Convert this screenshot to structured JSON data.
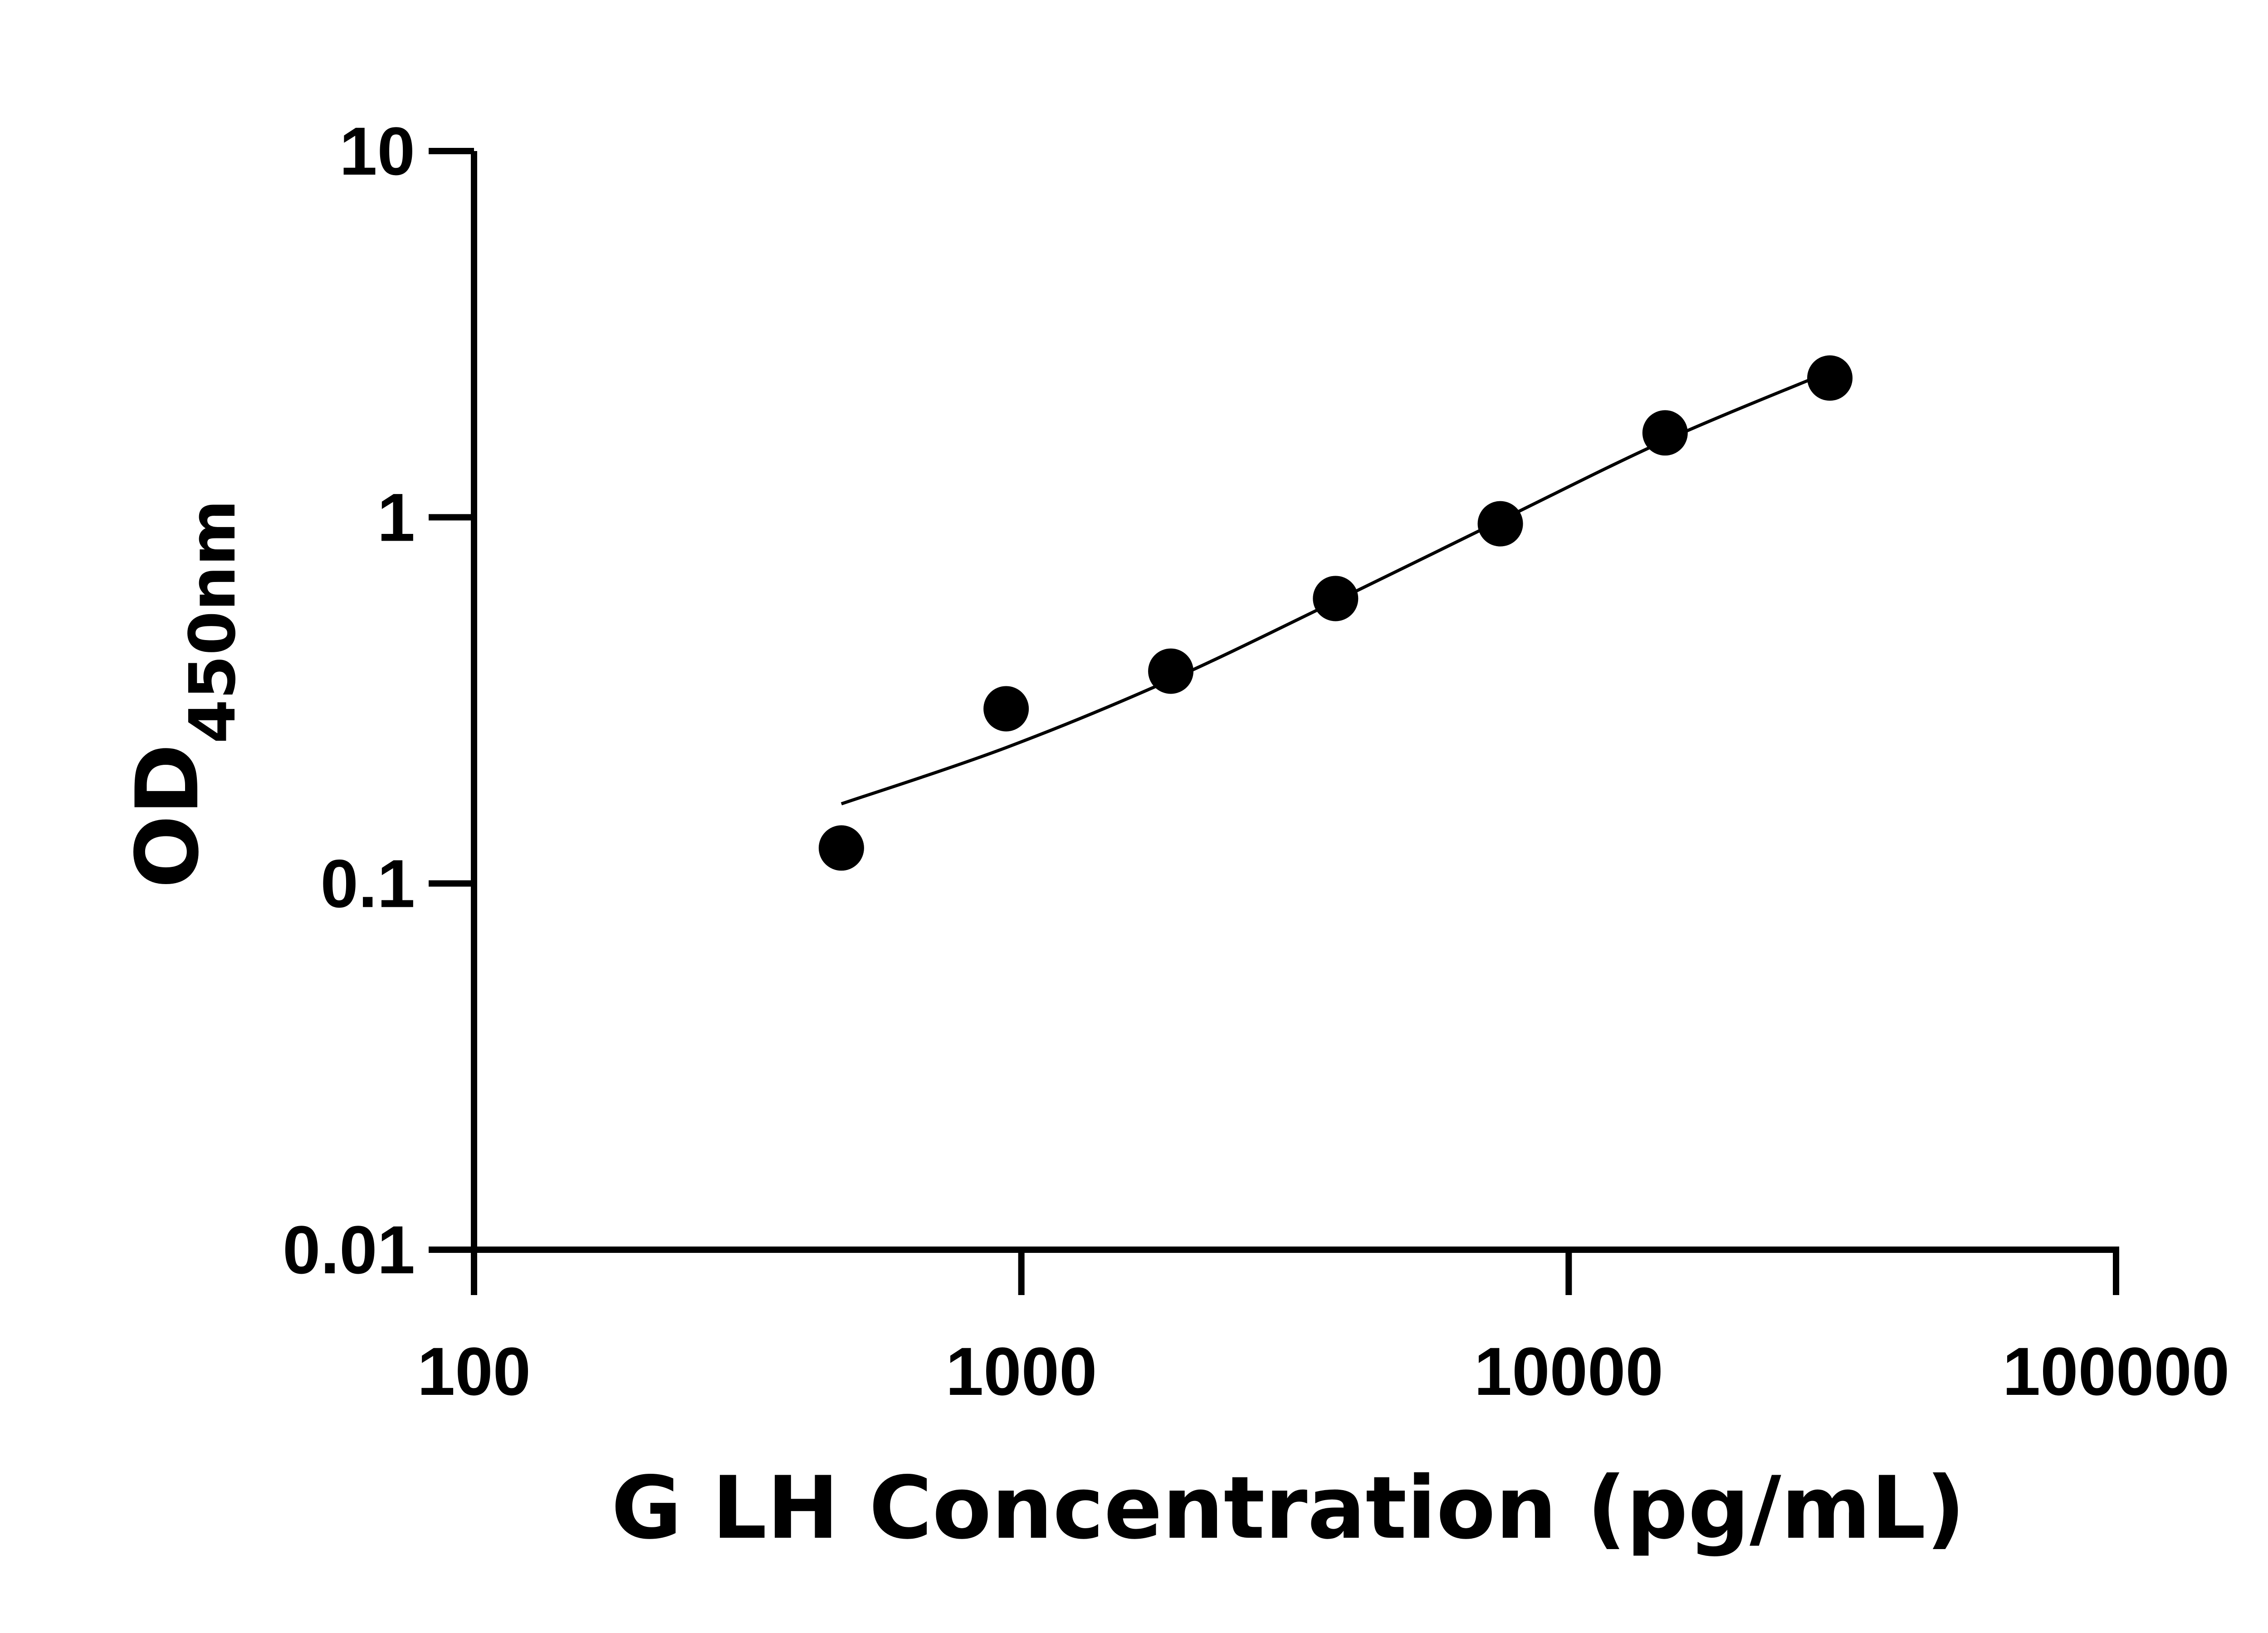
{
  "chart_data": {
    "type": "scatter",
    "title": "",
    "xlabel": "G LH Concentration (pg/mL)",
    "ylabel_main": "OD",
    "ylabel_sub": "450nm",
    "x_scale": "log",
    "y_scale": "log",
    "xlim": [
      100,
      100000
    ],
    "ylim": [
      0.01,
      10
    ],
    "x_ticks": [
      "100",
      "1000",
      "10000",
      "100000"
    ],
    "y_ticks": [
      "0.01",
      "0.1",
      "1",
      "10"
    ],
    "grid": false,
    "legend": "none",
    "series": [
      {
        "points": [
          {
            "x": 469,
            "y": 0.125
          },
          {
            "x": 938,
            "y": 0.3
          },
          {
            "x": 1875,
            "y": 0.38
          },
          {
            "x": 3750,
            "y": 0.6
          },
          {
            "x": 7500,
            "y": 0.96
          },
          {
            "x": 15000,
            "y": 1.7
          },
          {
            "x": 30000,
            "y": 2.4
          }
        ],
        "fit_curve": [
          {
            "x": 469,
            "y": 0.165
          },
          {
            "x": 938,
            "y": 0.235
          },
          {
            "x": 1875,
            "y": 0.36
          },
          {
            "x": 3750,
            "y": 0.59
          },
          {
            "x": 7500,
            "y": 0.98
          },
          {
            "x": 15000,
            "y": 1.62
          },
          {
            "x": 30000,
            "y": 2.5
          }
        ]
      }
    ],
    "colors": {
      "marker": "#000000",
      "line": "#000000",
      "axis": "#000000"
    }
  }
}
